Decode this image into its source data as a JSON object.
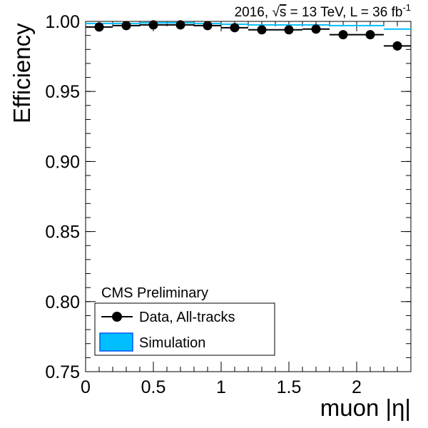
{
  "chart_data": {
    "type": "scatter",
    "header": {
      "prefix": "2016, ",
      "sqrt": "√",
      "s": "s",
      "mid": " = 13 TeV, L = 36 fb",
      "sup": "-1"
    },
    "xlabel": "muon |η|",
    "ylabel": "Efficiency",
    "xlim": [
      0,
      2.4
    ],
    "ylim": [
      0.75,
      1.0
    ],
    "x_ticks": [
      {
        "v": 0,
        "label": "0"
      },
      {
        "v": 0.5,
        "label": "0.5"
      },
      {
        "v": 1,
        "label": "1"
      },
      {
        "v": 1.5,
        "label": "1.5"
      },
      {
        "v": 2,
        "label": "2"
      }
    ],
    "y_ticks": [
      {
        "v": 0.75,
        "label": "0.75"
      },
      {
        "v": 0.8,
        "label": "0.80"
      },
      {
        "v": 0.85,
        "label": "0.85"
      },
      {
        "v": 0.9,
        "label": "0.90"
      },
      {
        "v": 0.95,
        "label": "0.95"
      },
      {
        "v": 1.0,
        "label": "1.00"
      }
    ],
    "series": [
      {
        "name": "Data, All-tracks",
        "color": "#000000",
        "bins": [
          {
            "x": 0.1,
            "xlow": 0.0,
            "xhigh": 0.2,
            "y": 0.996
          },
          {
            "x": 0.3,
            "xlow": 0.2,
            "xhigh": 0.4,
            "y": 0.997
          },
          {
            "x": 0.5,
            "xlow": 0.4,
            "xhigh": 0.6,
            "y": 0.9975
          },
          {
            "x": 0.7,
            "xlow": 0.6,
            "xhigh": 0.8,
            "y": 0.9975
          },
          {
            "x": 0.9,
            "xlow": 0.8,
            "xhigh": 1.0,
            "y": 0.997
          },
          {
            "x": 1.1,
            "xlow": 1.0,
            "xhigh": 1.2,
            "y": 0.9955
          },
          {
            "x": 1.3,
            "xlow": 1.2,
            "xhigh": 1.4,
            "y": 0.994
          },
          {
            "x": 1.5,
            "xlow": 1.4,
            "xhigh": 1.6,
            "y": 0.994
          },
          {
            "x": 1.7,
            "xlow": 1.6,
            "xhigh": 1.8,
            "y": 0.9945
          },
          {
            "x": 1.9,
            "xlow": 1.8,
            "xhigh": 2.0,
            "y": 0.9905
          },
          {
            "x": 2.1,
            "xlow": 2.0,
            "xhigh": 2.2,
            "y": 0.9905
          },
          {
            "x": 2.3,
            "xlow": 2.2,
            "xhigh": 2.4,
            "y": 0.9825
          }
        ]
      },
      {
        "name": "Simulation",
        "color": "#00BFFF",
        "bins": [
          {
            "xlow": 0.0,
            "xhigh": 0.2,
            "y": 0.9985
          },
          {
            "xlow": 0.2,
            "xhigh": 0.4,
            "y": 0.9985
          },
          {
            "xlow": 0.4,
            "xhigh": 0.6,
            "y": 0.999
          },
          {
            "xlow": 0.6,
            "xhigh": 0.8,
            "y": 0.999
          },
          {
            "xlow": 0.8,
            "xhigh": 1.0,
            "y": 0.9985
          },
          {
            "xlow": 1.0,
            "xhigh": 1.2,
            "y": 0.998
          },
          {
            "xlow": 1.2,
            "xhigh": 1.4,
            "y": 0.9975
          },
          {
            "xlow": 1.4,
            "xhigh": 1.6,
            "y": 0.9975
          },
          {
            "xlow": 1.6,
            "xhigh": 1.8,
            "y": 0.9975
          },
          {
            "xlow": 1.8,
            "xhigh": 2.0,
            "y": 0.997
          },
          {
            "xlow": 2.0,
            "xhigh": 2.2,
            "y": 0.997
          },
          {
            "xlow": 2.2,
            "xhigh": 2.4,
            "y": 0.9945
          }
        ]
      }
    ],
    "legend": {
      "header": "CMS Preliminary",
      "placement": "bottom-left",
      "entries": [
        {
          "label": "Data, All-tracks",
          "marker": "point-with-errorbar"
        },
        {
          "label": "Simulation",
          "marker": "filled-box",
          "fill": "#00BFFF",
          "stroke": "#0055FF"
        }
      ]
    },
    "grid": false
  }
}
